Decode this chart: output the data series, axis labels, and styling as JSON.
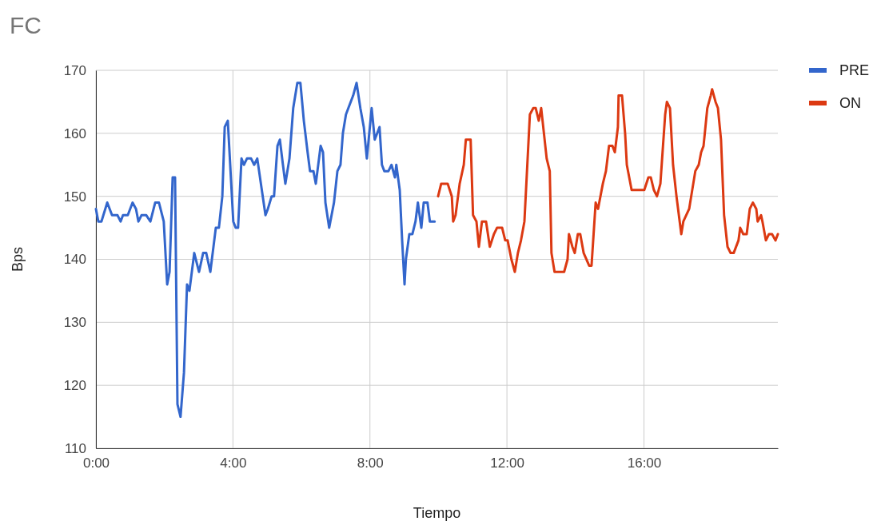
{
  "chart_data": {
    "type": "line",
    "title": "FC",
    "xlabel": "Tiempo",
    "ylabel": "Bps",
    "xlim": [
      0,
      19.91
    ],
    "ylim": [
      110,
      170
    ],
    "xticks": [
      {
        "value": 0,
        "label": "0:00"
      },
      {
        "value": 4,
        "label": "4:00"
      },
      {
        "value": 8,
        "label": "8:00"
      },
      {
        "value": 12,
        "label": "12:00"
      },
      {
        "value": 16,
        "label": "16:00"
      }
    ],
    "yticks": [
      110,
      120,
      130,
      140,
      150,
      160,
      170
    ],
    "grid": true,
    "legend": "top right",
    "marker": "none",
    "line_style": "solid",
    "series": [
      {
        "name": "PRE",
        "color": "#3366cc",
        "x": [
          0,
          0.07,
          0.16,
          0.33,
          0.47,
          0.63,
          0.72,
          0.79,
          0.93,
          1.07,
          1.17,
          1.24,
          1.33,
          1.47,
          1.59,
          1.73,
          1.84,
          1.98,
          2.08,
          2.15,
          2.24,
          2.31,
          2.38,
          2.47,
          2.57,
          2.66,
          2.73,
          2.87,
          3.01,
          3.13,
          3.22,
          3.34,
          3.5,
          3.59,
          3.69,
          3.76,
          3.85,
          3.92,
          4.01,
          4.08,
          4.15,
          4.25,
          4.32,
          4.41,
          4.53,
          4.62,
          4.71,
          4.95,
          5.02,
          5.13,
          5.2,
          5.3,
          5.37,
          5.46,
          5.53,
          5.65,
          5.76,
          5.88,
          5.97,
          6.07,
          6.18,
          6.25,
          6.35,
          6.42,
          6.56,
          6.63,
          6.7,
          6.81,
          6.95,
          7.05,
          7.14,
          7.21,
          7.3,
          7.37,
          7.51,
          7.61,
          7.72,
          7.82,
          7.91,
          8.05,
          8.14,
          8.28,
          8.35,
          8.42,
          8.54,
          8.63,
          8.73,
          8.77,
          8.87,
          8.94,
          9.01,
          9.05,
          9.15,
          9.24,
          9.33,
          9.4,
          9.5,
          9.57,
          9.68,
          9.75,
          9.89
        ],
        "values": [
          148,
          146,
          146,
          149,
          147,
          147,
          146,
          147,
          147,
          149,
          148,
          146,
          147,
          147,
          146,
          149,
          149,
          146,
          136,
          138,
          153,
          153,
          117,
          115,
          122,
          136,
          135,
          141,
          138,
          141,
          141,
          138,
          145,
          145,
          150,
          161,
          162,
          155,
          146,
          145,
          145,
          156,
          155,
          156,
          156,
          155,
          156,
          147,
          148,
          150,
          150,
          158,
          159,
          155,
          152,
          156,
          164,
          168,
          168,
          162,
          157,
          154,
          154,
          152,
          158,
          157,
          149,
          145,
          149,
          154,
          155,
          160,
          163,
          164,
          166,
          168,
          164,
          161,
          156,
          164,
          159,
          161,
          155,
          154,
          154,
          155,
          153,
          155,
          151,
          143,
          136,
          140,
          144,
          144,
          146,
          149,
          145,
          149,
          149,
          146,
          146
        ]
      },
      {
        "name": "ON",
        "color": "#dc3912",
        "x": [
          9.99,
          10.08,
          10.2,
          10.27,
          10.39,
          10.43,
          10.5,
          10.62,
          10.74,
          10.8,
          10.94,
          11.01,
          11.11,
          11.18,
          11.27,
          11.39,
          11.5,
          11.62,
          11.71,
          11.86,
          11.95,
          12.02,
          12.13,
          12.23,
          12.32,
          12.41,
          12.51,
          12.67,
          12.77,
          12.84,
          12.93,
          13,
          13.16,
          13.25,
          13.3,
          13.39,
          13.53,
          13.67,
          13.77,
          13.81,
          13.91,
          13.98,
          14.07,
          14.14,
          14.24,
          14.4,
          14.47,
          14.59,
          14.66,
          14.8,
          14.89,
          14.98,
          15.08,
          15.15,
          15.24,
          15.26,
          15.36,
          15.45,
          15.5,
          15.64,
          15.75,
          15.87,
          16.01,
          16.13,
          16.2,
          16.29,
          16.38,
          16.48,
          16.62,
          16.67,
          16.76,
          16.85,
          16.95,
          17.09,
          17.15,
          17.32,
          17.5,
          17.6,
          17.67,
          17.74,
          17.85,
          17.95,
          17.99,
          18.09,
          18.16,
          18.25,
          18.34,
          18.44,
          18.53,
          18.62,
          18.76,
          18.81,
          18.9,
          19,
          19.09,
          19.18,
          19.28,
          19.32,
          19.42,
          19.46,
          19.56,
          19.65,
          19.74,
          19.84,
          19.91
        ],
        "values": [
          150,
          152,
          152,
          152,
          150,
          146,
          147,
          152,
          155,
          159,
          159,
          147,
          146,
          142,
          146,
          146,
          142,
          144,
          145,
          145,
          143,
          143,
          140,
          138,
          141,
          143,
          146,
          163,
          164,
          164,
          162,
          164,
          156,
          154,
          141,
          138,
          138,
          138,
          140,
          144,
          142,
          141,
          144,
          144,
          141,
          139,
          139,
          149,
          148,
          152,
          154,
          158,
          158,
          157,
          161,
          166,
          166,
          160,
          155,
          151,
          151,
          151,
          151,
          153,
          153,
          151,
          150,
          152,
          163,
          165,
          164,
          155,
          150,
          144,
          146,
          148,
          154,
          155,
          157,
          158,
          164,
          166,
          167,
          165,
          164,
          159,
          147,
          142,
          141,
          141,
          143,
          145,
          144,
          144,
          148,
          149,
          148,
          146,
          147,
          146,
          143,
          144,
          144,
          143,
          144
        ]
      }
    ]
  }
}
